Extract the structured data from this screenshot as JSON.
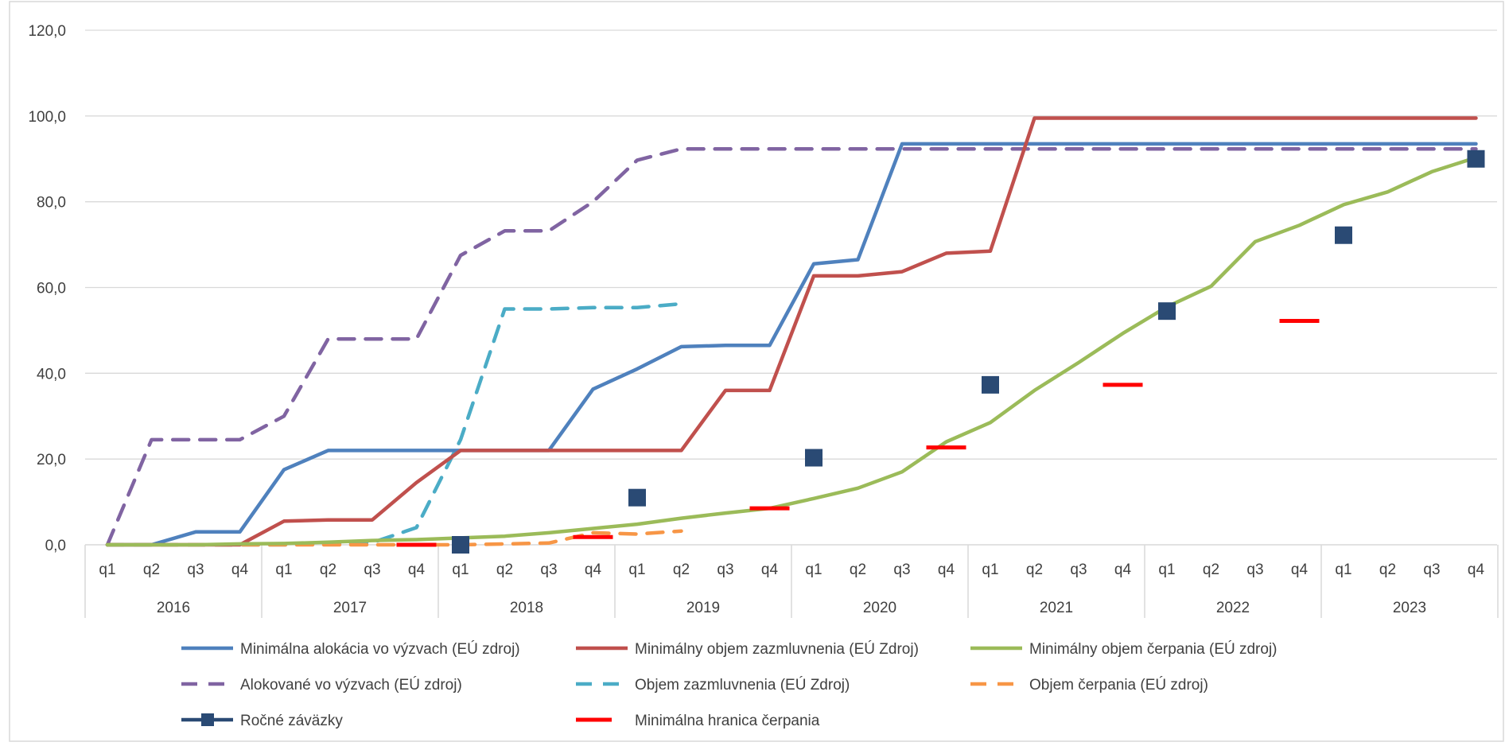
{
  "chart_data": {
    "type": "line",
    "title": "",
    "xlabel": "",
    "ylabel": "",
    "ylim": [
      0,
      120
    ],
    "yticks": [
      "0,0",
      "20,0",
      "40,0",
      "60,0",
      "80,0",
      "100,0",
      "120,0"
    ],
    "quarters": [
      "q1",
      "q2",
      "q3",
      "q4"
    ],
    "years": [
      "2016",
      "2017",
      "2018",
      "2019",
      "2020",
      "2021",
      "2022",
      "2023"
    ],
    "grid": true,
    "legend_position": "bottom",
    "series": [
      {
        "name": "Minimálna alokácia vo výzvach (EÚ zdroj)",
        "style": "solid",
        "color": "#4f81bd",
        "values": [
          0,
          0,
          3,
          3,
          17.5,
          22,
          22,
          22,
          22,
          22,
          22,
          36.3,
          41,
          46.2,
          46.5,
          46.5,
          65.5,
          66.5,
          93.5,
          93.5,
          93.5,
          93.5,
          93.5,
          93.5,
          93.5,
          93.5,
          93.5,
          93.5,
          93.5,
          93.5,
          93.5,
          93.5
        ]
      },
      {
        "name": "Minimálny objem zazmluvnenia (EÚ Zdroj)",
        "style": "solid",
        "color": "#c0504d",
        "values": [
          0,
          0,
          0,
          0,
          5.5,
          5.8,
          5.8,
          14.5,
          22,
          22,
          22,
          22,
          22,
          22,
          36,
          36,
          62.7,
          62.7,
          63.7,
          68,
          68.5,
          99.5,
          99.5,
          99.5,
          99.5,
          99.5,
          99.5,
          99.5,
          99.5,
          99.5,
          99.5,
          99.5
        ]
      },
      {
        "name": "Minimálny objem čerpania (EÚ zdroj)",
        "style": "solid",
        "color": "#9bbb59",
        "values": [
          0,
          0,
          0,
          0.2,
          0.3,
          0.6,
          1,
          1.2,
          1.6,
          2,
          2.8,
          3.8,
          4.8,
          6.2,
          7.4,
          8.5,
          10.8,
          13.2,
          17,
          24,
          28.5,
          36,
          42.5,
          49.3,
          55.5,
          60.3,
          70.7,
          74.5,
          79.3,
          82.3,
          87,
          90.3
        ]
      },
      {
        "name": "Alokované vo výzvach (EÚ zdroj)",
        "style": "dashed",
        "color": "#8064a2",
        "values": [
          0,
          24.5,
          24.5,
          24.5,
          30,
          48,
          48,
          48,
          67.5,
          73.2,
          73.2,
          80,
          89.7,
          92.3,
          92.3,
          92.3,
          92.3,
          92.3,
          92.3,
          92.3,
          92.3,
          92.3,
          92.3,
          92.3,
          92.3,
          92.3,
          92.3,
          92.3,
          92.3,
          92.3,
          92.3,
          92.3
        ]
      },
      {
        "name": "Objem zazmluvnenia (EÚ Zdroj)",
        "style": "dashed",
        "color": "#4bacc6",
        "values": [
          0,
          0,
          0,
          0,
          0,
          0.3,
          0.5,
          4,
          24.5,
          55,
          55,
          55.3,
          55.3,
          56.2,
          null,
          null,
          null,
          null,
          null,
          null,
          null,
          null,
          null,
          null,
          null,
          null,
          null,
          null,
          null,
          null,
          null,
          null
        ]
      },
      {
        "name": "Objem čerpania (EÚ zdroj)",
        "style": "dashed",
        "color": "#f79646",
        "values": [
          0,
          0,
          0,
          0,
          0,
          0,
          0,
          0,
          0,
          0.2,
          0.4,
          2.8,
          2.5,
          3.2,
          null,
          null,
          null,
          null,
          null,
          null,
          null,
          null,
          null,
          null,
          null,
          null,
          null,
          null,
          null,
          null,
          null,
          null
        ]
      },
      {
        "name": "Ročné záväzky",
        "style": "markers",
        "color": "#2a4a74",
        "values": [
          null,
          null,
          null,
          null,
          null,
          null,
          null,
          null,
          0,
          null,
          null,
          null,
          11,
          null,
          null,
          null,
          20.3,
          null,
          null,
          null,
          37.3,
          null,
          null,
          null,
          54.5,
          null,
          null,
          null,
          72.2,
          null,
          null,
          90
        ]
      },
      {
        "name": "Minimálna hranica čerpania",
        "style": "dash-markers",
        "color": "#ff0000",
        "values": [
          null,
          null,
          null,
          null,
          null,
          null,
          null,
          0,
          null,
          null,
          null,
          1.8,
          null,
          null,
          null,
          8.5,
          null,
          null,
          null,
          22.7,
          null,
          null,
          null,
          37.3,
          null,
          null,
          null,
          52.2,
          null,
          null,
          null,
          null
        ]
      }
    ]
  }
}
